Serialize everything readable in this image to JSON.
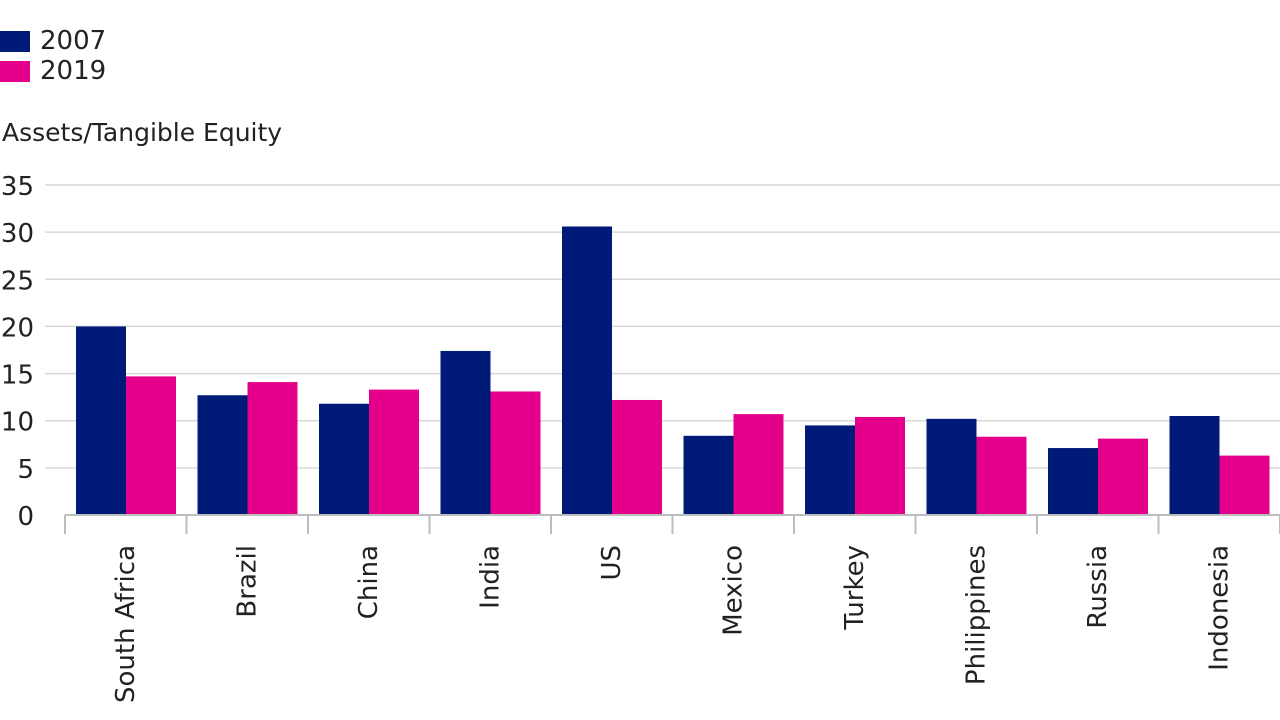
{
  "chart_data": {
    "type": "bar",
    "ylabel": "Assets/Tangible Equity",
    "xlabel": "",
    "title": "",
    "categories": [
      "South Africa",
      "Brazil",
      "China",
      "India",
      "US",
      "Mexico",
      "Turkey",
      "Philippines",
      "Russia",
      "Indonesia"
    ],
    "series": [
      {
        "name": "2007",
        "color": "#001a78",
        "values": [
          20.0,
          12.7,
          11.8,
          17.4,
          30.6,
          8.4,
          9.5,
          10.2,
          7.1,
          10.5
        ]
      },
      {
        "name": "2019",
        "color": "#e5008c",
        "values": [
          14.7,
          14.1,
          13.3,
          13.1,
          12.2,
          10.7,
          10.4,
          8.3,
          8.1,
          6.3
        ]
      }
    ],
    "ylim": [
      0,
      35
    ],
    "yticks": [
      0,
      5,
      10,
      15,
      20,
      25,
      30,
      35
    ],
    "grid": true,
    "legend": "top-left"
  }
}
